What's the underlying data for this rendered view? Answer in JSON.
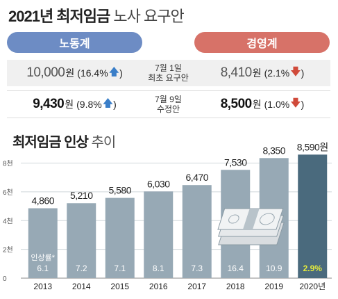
{
  "header": {
    "title_strong": "2021년 최저임금",
    "title_light": "노사 요구안"
  },
  "labor": {
    "label": "노동계",
    "first": {
      "value": "10,000",
      "unit": "원",
      "pct": "(16.4%",
      "close": ")",
      "direction": "up"
    },
    "revised": {
      "value": "9,430",
      "unit": "원",
      "pct": "(9.8%",
      "close": ")",
      "direction": "up"
    }
  },
  "management": {
    "label": "경영계",
    "first": {
      "value": "8,410",
      "unit": "원",
      "pct": "(2.1%",
      "close": ")",
      "direction": "down"
    },
    "revised": {
      "value": "8,500",
      "unit": "원",
      "pct": "(1.0%",
      "close": ")",
      "direction": "down"
    }
  },
  "middle": {
    "first_line1": "7월 1일",
    "first_line2": "최초 요구안",
    "revised_line1": "7월 9일",
    "revised_line2": "수정안"
  },
  "colors": {
    "labor": "#6d8cc4",
    "management": "#d77268",
    "bar": "#97a9b5",
    "bar_highlight": "#4a6a7d",
    "highlight_text": "#e3ea3c",
    "up_arrow": "#3a7ec8",
    "down_arrow": "#d04a3a"
  },
  "chart_data": {
    "type": "bar",
    "title_strong": "최저임금 인상",
    "title_light": "추이",
    "categories": [
      "2013",
      "2014",
      "2015",
      "2016",
      "2017",
      "2018",
      "2019",
      "2020년"
    ],
    "values": [
      4860,
      5210,
      5580,
      6030,
      6470,
      7530,
      8350,
      8590
    ],
    "value_labels": [
      "4,860",
      "5,210",
      "5,580",
      "6,030",
      "6,470",
      "7,530",
      "8,350",
      "8,590원"
    ],
    "increase_rates": [
      "6.1",
      "7.2",
      "7.1",
      "8.1",
      "7.3",
      "16.4",
      "10.9",
      "2.9%"
    ],
    "increase_label": "인상률*",
    "y_ticks": [
      0,
      2000,
      4000,
      6000,
      8000
    ],
    "y_tick_labels": [
      "0",
      "2천",
      "4천",
      "6천",
      "8천"
    ],
    "ylim": [
      0,
      8800
    ],
    "grid": true,
    "highlight_index": 7
  }
}
